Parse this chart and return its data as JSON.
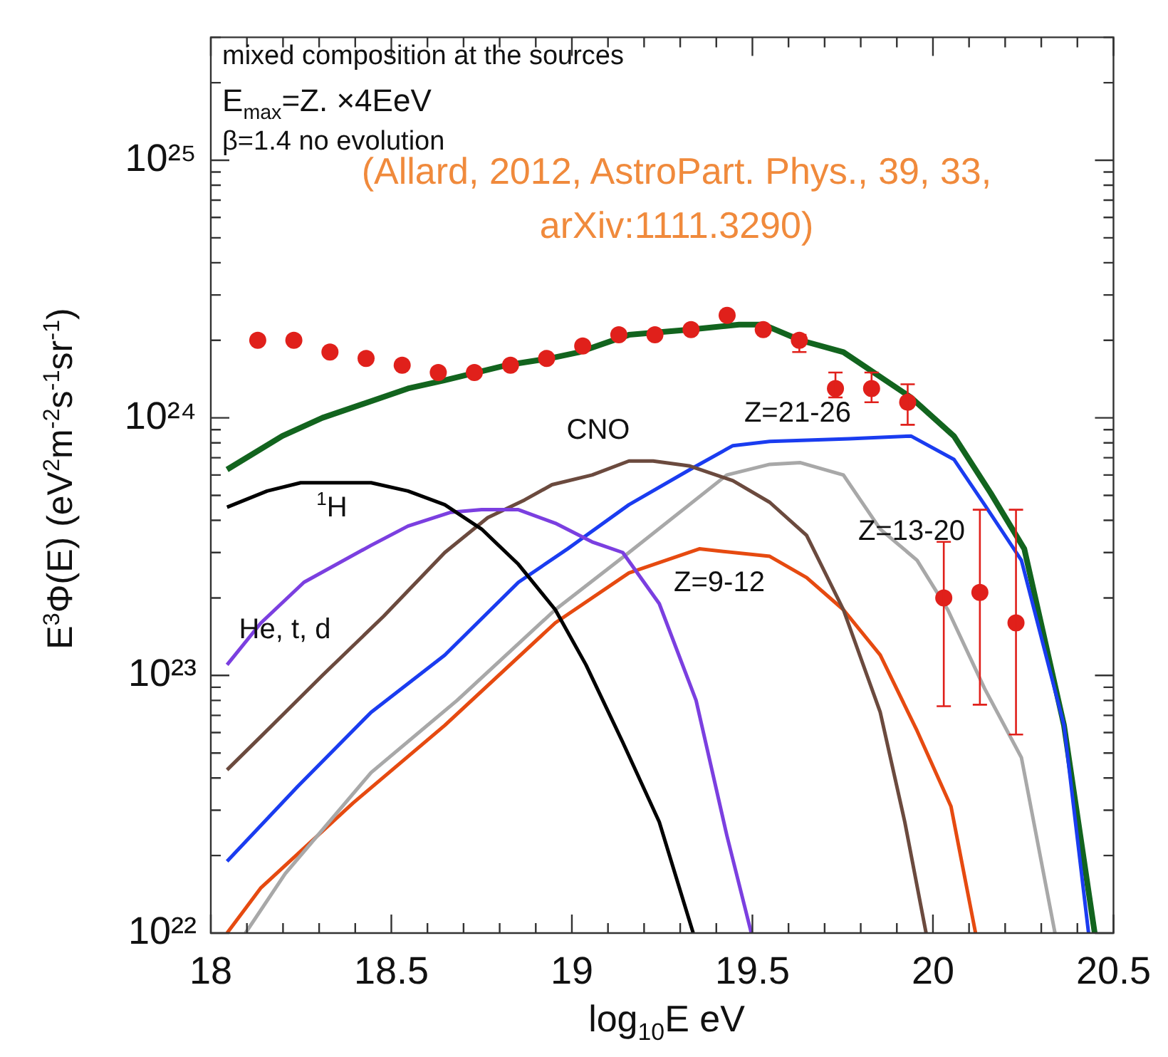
{
  "chart_data": {
    "type": "line",
    "xlabel": "log$_{10}$E eV",
    "ylabel": "E$^{3}$Φ(E) (eV$^{2}$m$^{-2}$s$^{-1}$sr$^{-1}$)",
    "log": "y",
    "xlim": [
      18,
      20.5
    ],
    "ylim": [
      1e+22,
      3e+25
    ],
    "xticks": [
      18,
      {
        "value": 18.1,
        "label": null
      },
      {
        "value": 18.2,
        "label": null
      },
      {
        "value": 18.3,
        "label": null
      },
      {
        "value": 18.4,
        "label": null
      },
      18.5,
      {
        "value": 18.6,
        "label": null
      },
      {
        "value": 18.7,
        "label": null
      },
      {
        "value": 18.8,
        "label": null
      },
      {
        "value": 18.9,
        "label": null
      },
      19,
      {
        "value": 19.1,
        "label": null
      },
      {
        "value": 19.2,
        "label": null
      },
      {
        "value": 19.3,
        "label": null
      },
      {
        "value": 19.4,
        "label": null
      },
      19.5,
      {
        "value": 19.6,
        "label": null
      },
      {
        "value": 19.7,
        "label": null
      },
      {
        "value": 19.8,
        "label": null
      },
      {
        "value": 19.9,
        "label": null
      },
      20,
      {
        "value": 20.1,
        "label": null
      },
      {
        "value": 20.2,
        "label": null
      },
      {
        "value": 20.3,
        "label": null
      },
      {
        "value": 20.4,
        "label": null
      },
      20.5
    ],
    "yticks": [
      {
        "value": 1e+22,
        "label": "10²²"
      },
      {
        "value": 2e+22,
        "label": null
      },
      {
        "value": 3e+22,
        "label": null
      },
      {
        "value": 4e+22,
        "label": null
      },
      {
        "value": 5e+22,
        "label": null
      },
      {
        "value": 6e+22,
        "label": null
      },
      {
        "value": 7e+22,
        "label": null
      },
      {
        "value": 8e+22,
        "label": null
      },
      {
        "value": 9e+22,
        "label": null
      },
      {
        "value": 1e+23,
        "label": "10²³"
      },
      {
        "value": 2e+23,
        "label": null
      },
      {
        "value": 3e+23,
        "label": null
      },
      {
        "value": 4e+23,
        "label": null
      },
      {
        "value": 5e+23,
        "label": null
      },
      {
        "value": 6e+23,
        "label": null
      },
      {
        "value": 7e+23,
        "label": null
      },
      {
        "value": 8e+23,
        "label": null
      },
      {
        "value": 9e+23,
        "label": null
      },
      {
        "value": 1e+24,
        "label": "10²⁴"
      },
      {
        "value": 2e+24,
        "label": null
      },
      {
        "value": 3e+24,
        "label": null
      },
      {
        "value": 4e+24,
        "label": null
      },
      {
        "value": 5e+24,
        "label": null
      },
      {
        "value": 6e+24,
        "label": null
      },
      {
        "value": 7e+24,
        "label": null
      },
      {
        "value": 8e+24,
        "label": null
      },
      {
        "value": 9e+24,
        "label": null
      },
      {
        "value": 1e+25,
        "label": "10²⁵"
      },
      {
        "value": 2e+25,
        "label": null
      },
      {
        "value": 3e+25,
        "label": null
      }
    ],
    "series": [
      {
        "name": "$^{1}$H",
        "color": "#000000",
        "marker": "none",
        "x": [
          18.045,
          18.156,
          18.249,
          18.444,
          18.546,
          18.648,
          18.75,
          18.852,
          18.954,
          19.039,
          19.141,
          19.242,
          19.336
        ],
        "values": [
          4.5e+23,
          5.2e+23,
          5.6e+23,
          5.6e+23,
          5.2e+23,
          4.6e+23,
          3.7e+23,
          2.7e+23,
          1.8e+23,
          1.1e+23,
          5.5e+22,
          2.7e+22,
          1e+22
        ]
      },
      {
        "name": "He, t, d",
        "color": "#7b3fe0",
        "marker": "none",
        "x": [
          18.045,
          18.139,
          18.258,
          18.444,
          18.546,
          18.665,
          18.75,
          18.852,
          18.954,
          19.056,
          19.141,
          19.242,
          19.344,
          19.429,
          19.497
        ],
        "values": [
          1.1e+23,
          1.6e+23,
          2.3e+23,
          3.2e+23,
          3.8e+23,
          4.3e+23,
          4.4e+23,
          4.4e+23,
          3.9e+23,
          3.3e+23,
          3e+23,
          1.9e+23,
          8e+22,
          2.4e+22,
          1e+22
        ]
      },
      {
        "name": "CNO",
        "color": "#6b4a3e",
        "marker": "none",
        "x": [
          18.045,
          18.139,
          18.309,
          18.479,
          18.648,
          18.767,
          18.869,
          18.945,
          19.056,
          19.158,
          19.225,
          19.327,
          19.446,
          19.548,
          19.65,
          19.752,
          19.854,
          19.922,
          19.981
        ],
        "values": [
          4.3e+22,
          5.8e+22,
          1e+23,
          1.7e+23,
          3e+23,
          4.1e+23,
          4.8e+23,
          5.5e+23,
          6e+23,
          6.8e+23,
          6.8e+23,
          6.5e+23,
          5.7e+23,
          4.7e+23,
          3.5e+23,
          1.8e+23,
          7.2e+22,
          2.7e+22,
          1e+22
        ]
      },
      {
        "name": "Z=21-26",
        "color": "#1a3cf0",
        "marker": "none",
        "x": [
          18.045,
          18.24,
          18.444,
          18.648,
          18.852,
          18.988,
          19.158,
          19.327,
          19.446,
          19.548,
          19.667,
          19.769,
          19.939,
          20.058,
          20.143,
          20.245,
          20.363,
          20.431
        ],
        "values": [
          1.9e+22,
          3.7e+22,
          7.2e+22,
          1.2e+23,
          2.3e+23,
          3.1e+23,
          4.6e+23,
          6.3e+23,
          7.8e+23,
          8.1e+23,
          8.2e+23,
          8.3e+23,
          8.5e+23,
          6.9e+23,
          4.6e+23,
          2.8e+23,
          6.4e+22,
          1e+22
        ]
      },
      {
        "name": "Z=13-20",
        "color": "#a8a8a8",
        "marker": "none",
        "x": [
          18.096,
          18.206,
          18.444,
          18.682,
          18.954,
          19.158,
          19.429,
          19.548,
          19.633,
          19.752,
          19.854,
          19.956,
          20.041,
          20.143,
          20.245,
          20.338
        ],
        "values": [
          1e+22,
          1.7e+22,
          4.2e+22,
          8e+22,
          1.8e+23,
          3e+23,
          6e+23,
          6.6e+23,
          6.7e+23,
          6e+23,
          3.7e+23,
          2.8e+23,
          1.8e+23,
          8.9e+22,
          4.8e+22,
          1e+22
        ]
      },
      {
        "name": "Z=9-12",
        "color": "#e64a10",
        "marker": "none",
        "x": [
          18.045,
          18.139,
          18.394,
          18.648,
          18.954,
          19.158,
          19.353,
          19.548,
          19.65,
          19.752,
          19.854,
          19.956,
          20.05,
          20.118
        ],
        "values": [
          1e+22,
          1.5e+22,
          3.2e+22,
          6.4e+22,
          1.6e+23,
          2.5e+23,
          3.1e+23,
          2.9e+23,
          2.4e+23,
          1.8e+23,
          1.2e+23,
          6.1e+22,
          3.1e+22,
          1e+22
        ]
      },
      {
        "color": "#12641e",
        "marker": "none",
        "x": [
          18.045,
          18.198,
          18.309,
          18.546,
          18.648,
          18.818,
          18.937,
          19.021,
          19.158,
          19.327,
          19.463,
          19.531,
          19.633,
          19.752,
          19.939,
          20.058,
          20.16,
          20.253,
          20.363,
          20.448
        ],
        "values": [
          6.3e+23,
          8.5e+23,
          1e+24,
          1.3e+24,
          1.4e+24,
          1.6e+24,
          1.7e+24,
          1.8e+24,
          2.1e+24,
          2.2e+24,
          2.3e+24,
          2.3e+24,
          2e+24,
          1.8e+24,
          1.2e+24,
          8.5e+23,
          5.1e+23,
          3.1e+23,
          6.4e+22,
          1e+22
        ]
      },
      {
        "type": "scatter",
        "color": "#e0201b",
        "marker": "circle",
        "x": [
          18.13,
          18.23,
          18.33,
          18.43,
          18.53,
          18.63,
          18.73,
          18.83,
          18.93,
          19.03,
          19.13,
          19.23,
          19.33,
          19.43,
          19.53,
          19.63,
          19.73,
          19.83,
          19.93,
          20.03,
          20.13,
          20.23
        ],
        "values": [
          2e+24,
          2e+24,
          1.8e+24,
          1.7e+24,
          1.6e+24,
          1.5e+24,
          1.5e+24,
          1.6e+24,
          1.7e+24,
          1.9e+24,
          2.1e+24,
          2.1e+24,
          2.2e+24,
          2.5e+24,
          2.2e+24,
          2e+24,
          1.3e+24,
          1.3e+24,
          1.15e+24,
          2e+23,
          2.1e+23,
          1.6e+23
        ],
        "errors": [
          null,
          null,
          null,
          null,
          null,
          null,
          null,
          null,
          null,
          null,
          null,
          null,
          null,
          null,
          null,
          [
            1.8e+24,
            2.1e+24
          ],
          [
            1.2e+24,
            1.5e+24
          ],
          [
            1.15e+24,
            1.5e+24
          ],
          [
            9.4e+23,
            1.35e+24
          ],
          [
            7.6e+22,
            3.3e+23
          ],
          [
            7.7e+22,
            4.4e+23
          ],
          [
            5.9e+22,
            4.4e+23
          ]
        ]
      }
    ],
    "annotations": [
      "mixed composition at the sources",
      "E$_{max}$=Z. ×4EeV",
      "β=1.4 no evolution",
      "(Allard, 2012, AstroPart. Phys., 39, 33, arXiv:1111.3290)"
    ]
  }
}
